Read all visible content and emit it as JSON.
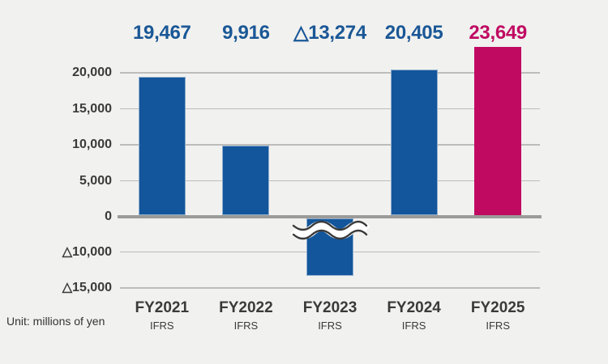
{
  "background_color": "#F1F1EF",
  "unit_label": "Unit: millions of yen",
  "chart_data": {
    "type": "bar",
    "title": "",
    "unit": "millions of yen",
    "categories": [
      "FY2021",
      "FY2022",
      "FY2023",
      "FY2024",
      "FY2025"
    ],
    "category_sublabels": [
      "IFRS",
      "IFRS",
      "IFRS",
      "IFRS",
      "IFRS"
    ],
    "values": [
      19467,
      9916,
      -13274,
      20405,
      23649
    ],
    "value_labels": [
      "19,467",
      "9,916",
      "△13,274",
      "20,405",
      "23,649"
    ],
    "highlight_index": 4,
    "ylim": [
      -15000,
      20000
    ],
    "ytick_values": [
      20000,
      15000,
      10000,
      5000,
      0,
      -10000,
      -15000
    ],
    "ytick_labels": [
      "20,000",
      "15,000",
      "10,000",
      "5,000",
      "0",
      "△10,000",
      "△15,000"
    ],
    "axis_break": {
      "between": [
        0,
        -10000
      ],
      "style": "double-wave",
      "at_category": "FY2023"
    },
    "grid": true,
    "legend": "none",
    "colors": {
      "bar_default": "#13569B",
      "bar_border": "#8FAECF",
      "bar_highlight": "#C00A62",
      "value_label_default": "#1A5796",
      "value_label_highlight": "#C00A62",
      "axis_text": "#3A3A3A",
      "unit_text": "#333333",
      "gridline": "#BCBCBA",
      "zero_line": "#9B9B99",
      "break_stroke": "#3A3A3A",
      "break_fill": "#FFFFFF"
    }
  }
}
